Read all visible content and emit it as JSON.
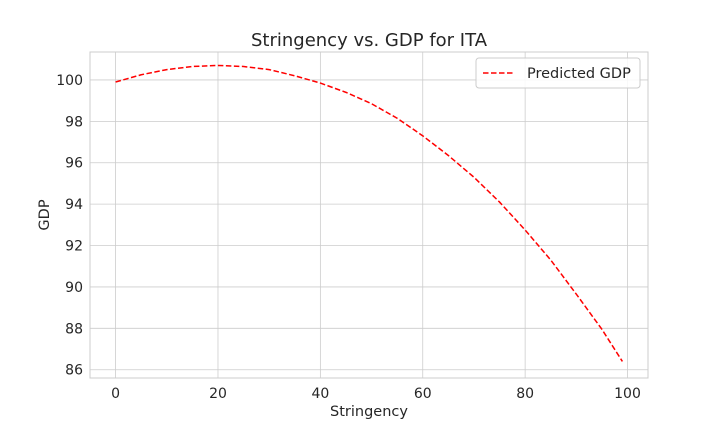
{
  "chart_data": {
    "type": "line",
    "title": "Stringency vs. GDP for ITA",
    "xlabel": "Stringency",
    "ylabel": "GDP",
    "xlim": [
      -5,
      104
    ],
    "ylim": [
      85.6,
      101.35
    ],
    "xticks": [
      0,
      20,
      40,
      60,
      80,
      100
    ],
    "yticks": [
      86,
      88,
      90,
      92,
      94,
      96,
      98,
      100
    ],
    "grid": true,
    "legend_position": "top-right",
    "series": [
      {
        "name": "Predicted GDP",
        "color": "#ff0000",
        "style": "dashed",
        "x": [
          0,
          5,
          10,
          15,
          20,
          25,
          30,
          35,
          40,
          45,
          50,
          55,
          60,
          65,
          70,
          75,
          80,
          85,
          90,
          95,
          99
        ],
        "y": [
          99.9,
          100.25,
          100.5,
          100.65,
          100.7,
          100.65,
          100.5,
          100.2,
          99.85,
          99.4,
          98.85,
          98.15,
          97.3,
          96.35,
          95.3,
          94.1,
          92.75,
          91.3,
          89.65,
          87.95,
          86.4
        ]
      }
    ]
  }
}
